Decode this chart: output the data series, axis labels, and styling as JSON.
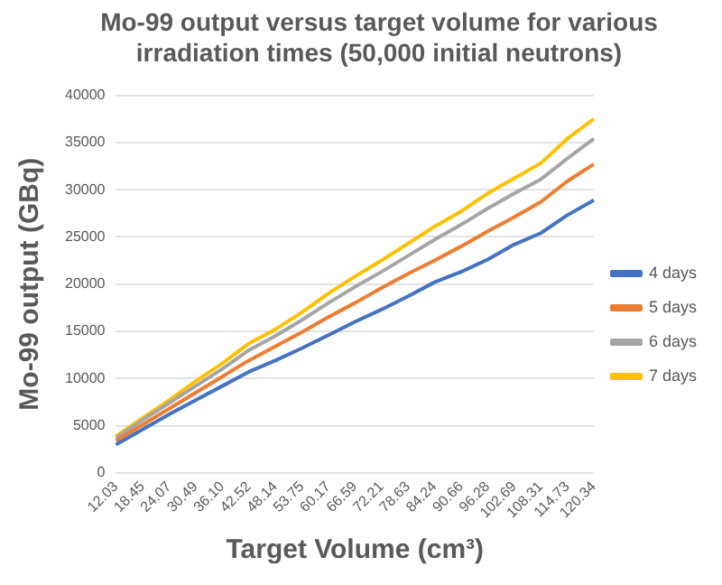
{
  "chart_data": {
    "type": "line",
    "title": "Mo-99 output versus target volume for various irradiation times (50,000 initial neutrons)",
    "xlabel": "Target Volume (cm³)",
    "ylabel": "Mo-99 output (GBq)",
    "categories": [
      "12.03",
      "18.45",
      "24.07",
      "30.49",
      "36.10",
      "42.52",
      "48.14",
      "53.75",
      "60.17",
      "66.59",
      "72.21",
      "78.63",
      "84.24",
      "90.66",
      "96.28",
      "102.69",
      "108.31",
      "114.73",
      "120.34"
    ],
    "series": [
      {
        "name": "4 days",
        "color": "#4472c4",
        "values": [
          3000,
          4600,
          6200,
          7700,
          9200,
          10700,
          11900,
          13200,
          14600,
          16000,
          17300,
          18700,
          20200,
          21300,
          22600,
          24200,
          25400,
          27300,
          28900
        ]
      },
      {
        "name": "5 days",
        "color": "#ed7d31",
        "values": [
          3400,
          5100,
          6800,
          8500,
          10200,
          11900,
          13400,
          14900,
          16500,
          18000,
          19600,
          21100,
          22500,
          24000,
          25600,
          27100,
          28700,
          30900,
          32700
        ]
      },
      {
        "name": "6 days",
        "color": "#a5a5a5",
        "values": [
          3700,
          5600,
          7400,
          9200,
          11000,
          13000,
          14500,
          16200,
          18000,
          19700,
          21300,
          23000,
          24700,
          26300,
          28000,
          29600,
          31100,
          33300,
          35400
        ]
      },
      {
        "name": "7 days",
        "color": "#ffc000",
        "values": [
          3900,
          5800,
          7700,
          9700,
          11600,
          13700,
          15200,
          17000,
          19000,
          20800,
          22500,
          24300,
          26100,
          27700,
          29600,
          31200,
          32800,
          35400,
          37500
        ]
      }
    ],
    "ylim": [
      0,
      40000
    ],
    "yticks": [
      0,
      5000,
      10000,
      15000,
      20000,
      25000,
      30000,
      35000,
      40000
    ],
    "grid": "y",
    "legend": "right",
    "marker": "none",
    "line_style": "solid"
  }
}
